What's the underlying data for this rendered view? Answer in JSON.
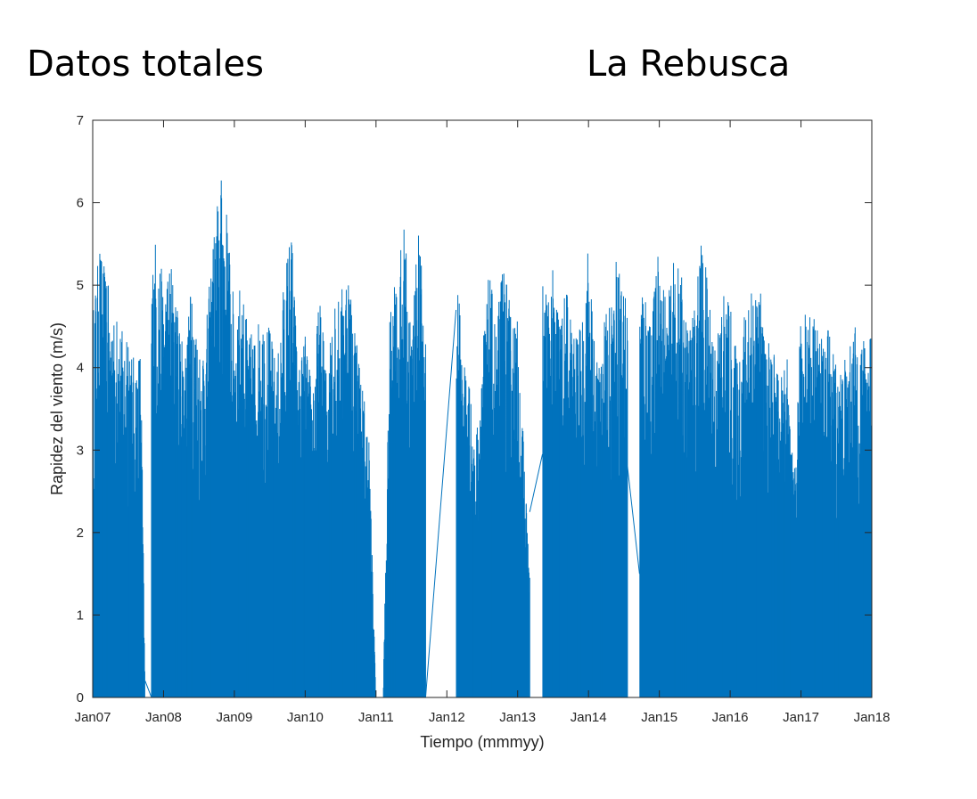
{
  "titles": {
    "left": "Datos totales",
    "right": "La Rebusca"
  },
  "chart_data": {
    "type": "line",
    "title": "",
    "xlabel": "Tiempo (mmmyy)",
    "ylabel": "Rapidez del viento (m/s)",
    "xlim": [
      0,
      11
    ],
    "ylim": [
      0,
      7
    ],
    "grid": false,
    "line_color": "#0072BD",
    "xticks": [
      "Jan07",
      "Jan08",
      "Jan09",
      "Jan10",
      "Jan11",
      "Jan12",
      "Jan13",
      "Jan14",
      "Jan15",
      "Jan16",
      "Jan17",
      "Jan18"
    ],
    "yticks": [
      0,
      1,
      2,
      3,
      4,
      5,
      6,
      7
    ],
    "series": [
      {
        "values_description_free": true,
        "x": [
          0.0,
          0.1,
          0.2,
          0.3,
          0.4,
          0.5,
          0.6,
          0.68,
          0.74,
          0.8,
          0.9,
          1.0,
          1.1,
          1.2,
          1.3,
          1.4,
          1.5,
          1.6,
          1.7,
          1.8,
          1.9,
          2.0,
          2.1,
          2.2,
          2.3,
          2.4,
          2.5,
          2.6,
          2.7,
          2.8,
          2.9,
          3.0,
          3.1,
          3.2,
          3.3,
          3.4,
          3.5,
          3.6,
          3.7,
          3.8,
          3.9,
          4.0,
          4.1,
          4.2,
          4.3,
          4.4,
          4.5,
          4.6,
          4.7,
          5.0,
          5.13,
          5.2,
          5.3,
          5.4,
          5.5,
          5.6,
          5.7,
          5.8,
          5.9,
          6.0,
          6.1,
          6.17,
          6.2,
          6.3,
          6.4,
          6.5,
          6.6,
          6.7,
          6.8,
          6.9,
          7.0,
          7.1,
          7.2,
          7.3,
          7.4,
          7.55,
          7.6,
          7.7,
          7.8,
          7.9,
          8.0,
          8.1,
          8.2,
          8.3,
          8.4,
          8.5,
          8.6,
          8.7,
          8.8,
          8.9,
          9.0,
          9.1,
          9.2,
          9.3,
          9.4,
          9.5,
          9.6,
          9.7,
          9.8,
          9.9,
          10.0,
          10.1,
          10.2,
          10.3,
          10.4,
          10.5,
          10.6,
          10.7,
          10.8,
          10.9,
          11.0
        ],
        "y": [
          4.7,
          5.5,
          5.1,
          4.6,
          4.5,
          4.3,
          4.1,
          4.3,
          0.0,
          5.1,
          5.7,
          5.0,
          5.4,
          4.7,
          4.2,
          5.1,
          4.3,
          4.5,
          5.6,
          6.4,
          5.9,
          4.7,
          5.1,
          4.4,
          4.5,
          4.7,
          4.5,
          4.0,
          5.1,
          5.8,
          4.0,
          4.4,
          3.8,
          4.9,
          4.0,
          4.8,
          4.9,
          5.4,
          4.6,
          3.9,
          3.2,
          0.0,
          0.0,
          4.8,
          5.1,
          5.8,
          4.5,
          5.7,
          4.6,
          5.8,
          5.7,
          4.4,
          4.0,
          3.0,
          4.3,
          5.2,
          4.5,
          5.4,
          4.7,
          4.6,
          2.8,
          1.5,
          4.2,
          5.3,
          4.9,
          5.2,
          4.7,
          5.0,
          4.4,
          4.5,
          5.6,
          4.1,
          4.5,
          4.8,
          5.4,
          4.9,
          5.1,
          5.1,
          5.0,
          4.7,
          5.6,
          4.7,
          5.3,
          5.2,
          4.5,
          4.8,
          5.6,
          5.0,
          4.3,
          5.0,
          4.8,
          4.1,
          4.7,
          4.9,
          5.2,
          4.3,
          4.3,
          3.8,
          4.2,
          2.6,
          4.7,
          4.8,
          4.6,
          4.4,
          4.5,
          4.1,
          4.1,
          4.3,
          4.6,
          4.3,
          4.7
        ]
      }
    ]
  }
}
